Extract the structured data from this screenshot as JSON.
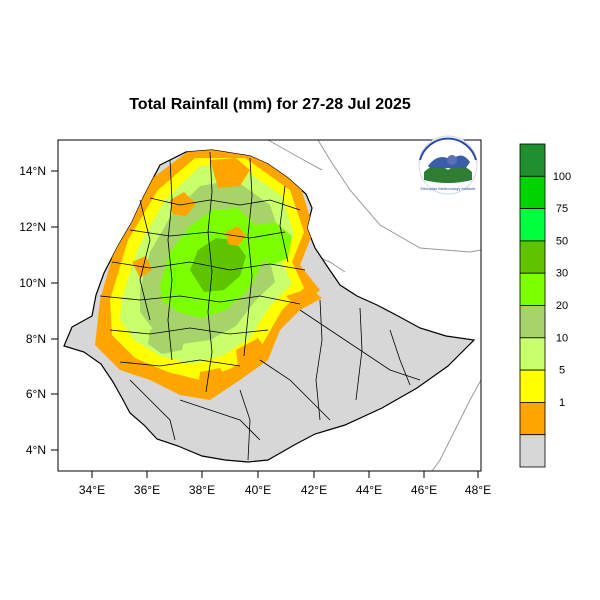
{
  "title": "Total Rainfall (mm) for 27-28 Jul 2025",
  "axes": {
    "x_ticks": [
      "34°E",
      "36°E",
      "38°E",
      "40°E",
      "42°E",
      "44°E",
      "46°E",
      "48°E"
    ],
    "y_ticks": [
      "14°N",
      "12°N",
      "10°N",
      "8°N",
      "6°N",
      "4°N"
    ]
  },
  "legend": {
    "labels": [
      "1",
      "5",
      "10",
      "20",
      "30",
      "50",
      "75",
      "100"
    ],
    "colors": [
      "#d7d7d7",
      "#ffa500",
      "#ffff00",
      "#c8ff6a",
      "#a6d36a",
      "#7cff00",
      "#5ec400",
      "#00ff3c",
      "#00d400",
      "#1f8f2f"
    ]
  },
  "logo": {
    "name": "ethiopian-meteorology-logo",
    "text": "Ethiopian Meteorology Institute"
  }
}
